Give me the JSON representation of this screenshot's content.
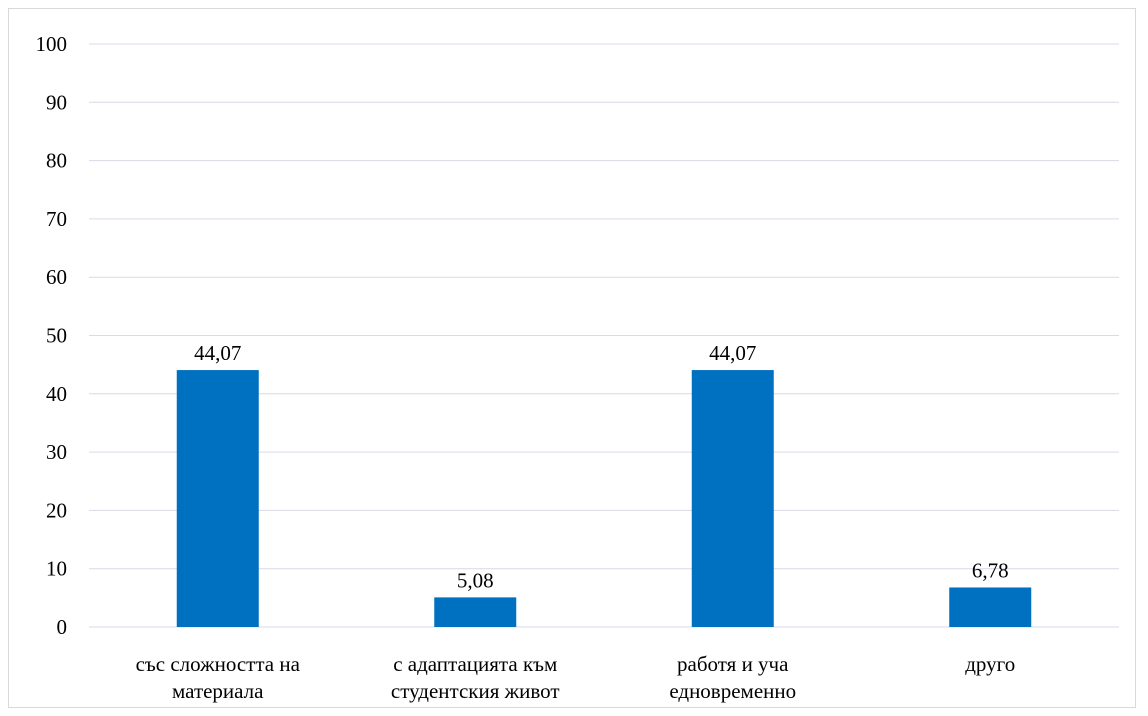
{
  "chart_data": {
    "type": "bar",
    "title": "",
    "xlabel": "",
    "ylabel": "",
    "ylim": [
      0,
      100
    ],
    "yticks": [
      "0",
      "10",
      "20",
      "30",
      "40",
      "50",
      "60",
      "70",
      "80",
      "90",
      "100"
    ],
    "grid": true,
    "legend": "none",
    "categories": [
      [
        "със сложността на",
        "материала"
      ],
      [
        "с адаптацията към",
        "студентския живот"
      ],
      [
        "работя и уча",
        "едновременно"
      ],
      [
        "друго"
      ]
    ],
    "values": [
      44.07,
      5.08,
      44.07,
      6.78
    ],
    "value_labels": [
      "44,07",
      "5,08",
      "44,07",
      "6,78"
    ],
    "bar_color": "#0070c0",
    "grid_color": "#d9d9e8"
  }
}
